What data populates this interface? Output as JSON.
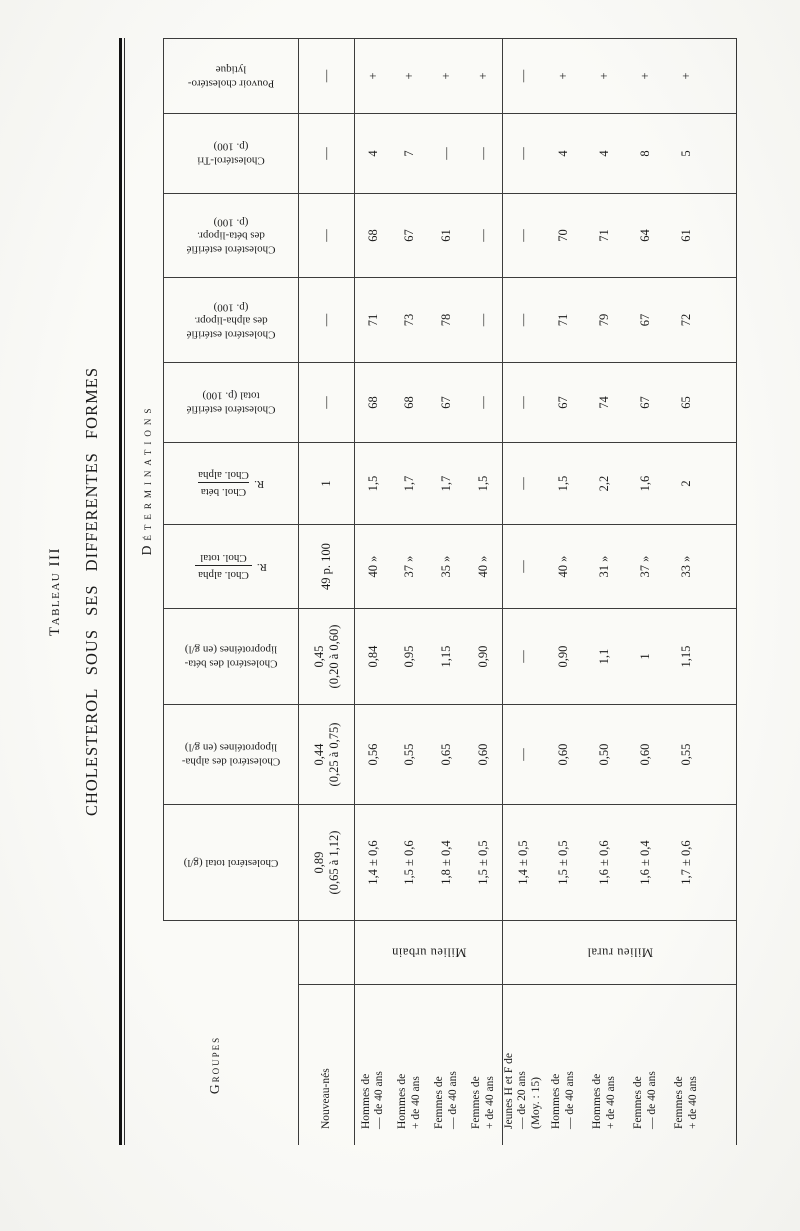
{
  "title": {
    "caption": "Tableau III",
    "heading": "CHOLESTEROL SOUS SES DIFFERENTES FORMES"
  },
  "table": {
    "corner_header": "Groupes",
    "determinations_header": "Déterminations",
    "milieu": {
      "urbain": "Milieu urbain",
      "rural": "Milieu rural"
    },
    "groups": [
      "Nouveau-nés",
      "Hommes de\n— de 40 ans",
      "Hommes de\n+ de 40 ans",
      "Femmes de\n— de 40 ans",
      "Femmes de\n+ de 40 ans",
      "Jeunes H et F de\n— de 20 ans\n(Moy. : 15)",
      "Hommes de\n— de 40 ans",
      "Hommes de\n+ de 40 ans",
      "Femmes de\n— de 40 ans",
      "Femmes de\n+ de 40 ans"
    ],
    "columns": [
      {
        "id": "cholesterol-total",
        "label": "Cholestérol total (g/l)",
        "values": [
          "0,89\n(0,65 à 1,12)",
          "1,4 ± 0,6",
          "1,5 ± 0,6",
          "1,8 ± 0,4",
          "1,5 ± 0,5",
          "1,4 ± 0,5",
          "1,5 ± 0,5",
          "1,6 ± 0,6",
          "1,6 ± 0,4",
          "1,7 ± 0,6"
        ]
      },
      {
        "id": "alpha-lipoproteines",
        "label": "Cholestérol des alpha-\nlipoprotéines (en g/l)",
        "values": [
          "0,44\n(0,25 à 0,75)",
          "0,56",
          "0,55",
          "0,65",
          "0,60",
          "—",
          "0,60",
          "0,50",
          "0,60",
          "0,55"
        ]
      },
      {
        "id": "beta-lipoproteines",
        "label": "Cholestérol des béta-\nlipoprotéines (en g/l)",
        "values": [
          "0,45\n(0,20 à 0,60)",
          "0,84",
          "0,95",
          "1,15",
          "0,90",
          "—",
          "0,90",
          "1,1",
          "1",
          "1,15"
        ]
      },
      {
        "id": "ratio-alpha-total",
        "fraction": {
          "prefix": "R.",
          "num": "Chol. alpha",
          "den": "Chol. total"
        },
        "values": [
          "49 p. 100",
          "40 »",
          "37 »",
          "35 »",
          "40 »",
          "—",
          "40 »",
          "31 »",
          "37 »",
          "33 »"
        ]
      },
      {
        "id": "ratio-beta-alpha",
        "fraction": {
          "prefix": "R.",
          "num": "Chol. béta",
          "den": "Chol. alpha"
        },
        "values": [
          "1",
          "1,5",
          "1,7",
          "1,7",
          "1,5",
          "—",
          "1,5",
          "2,2",
          "1,6",
          "2"
        ]
      },
      {
        "id": "esterifie-total",
        "label": "Cholestérol estérifié\ntotal (p. 100)",
        "values": [
          "—",
          "68",
          "68",
          "67",
          "—",
          "—",
          "67",
          "74",
          "67",
          "65"
        ]
      },
      {
        "id": "esterifie-alpha",
        "label": "Cholestérol estérifié\ndes alpha-lipopr.\n(p. 100)",
        "values": [
          "—",
          "71",
          "73",
          "78",
          "—",
          "—",
          "71",
          "79",
          "67",
          "72"
        ]
      },
      {
        "id": "esterifie-beta",
        "label": "Cholestérol estérifié\ndes béta-lipopr.\n(p. 100)",
        "values": [
          "—",
          "68",
          "67",
          "61",
          "—",
          "—",
          "70",
          "71",
          "64",
          "61"
        ]
      },
      {
        "id": "cholesterol-tri",
        "label": "Cholestérol-Tri\n(p. 100)",
        "values": [
          "—",
          "4",
          "7",
          "—",
          "—",
          "—",
          "4",
          "4",
          "8",
          "5"
        ]
      },
      {
        "id": "pouvoir-cholestero-lytique",
        "label": "Pouvoir cholestéro-\nlytique",
        "values": [
          "—",
          "+",
          "+",
          "+",
          "+",
          "—",
          "+",
          "+",
          "+",
          "+"
        ]
      }
    ]
  }
}
